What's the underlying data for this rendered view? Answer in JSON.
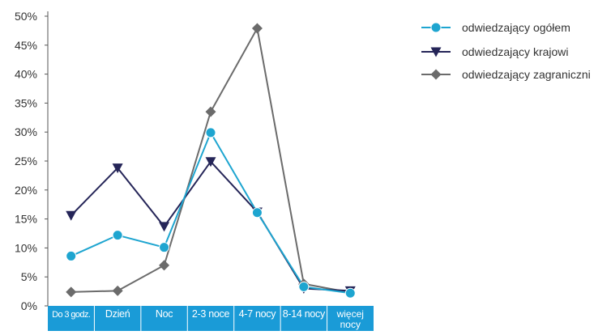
{
  "chart_data": {
    "type": "line",
    "title": "",
    "xlabel": "",
    "ylabel": "",
    "categories": [
      "Do 3 godz.",
      "Dzień",
      "Noc",
      "2-3 noce",
      "4-7 nocy",
      "8-14 nocy",
      "więcej nocy"
    ],
    "ylim": [
      0,
      50
    ],
    "yticks": [
      "0%",
      "5%",
      "10%",
      "15%",
      "20%",
      "25%",
      "30%",
      "35%",
      "40%",
      "45%",
      "50%"
    ],
    "grid": false,
    "legend_position": "top-right",
    "category_band_color": "#1a9bd7",
    "series": [
      {
        "name": "odwiedzający ogółem",
        "color": "#1ea5d0",
        "marker": "circle",
        "values": [
          8.6,
          12.2,
          10.1,
          29.9,
          16.1,
          3.3,
          2.2
        ]
      },
      {
        "name": "odwiedzający krajowi",
        "color": "#252558",
        "marker": "triangle-down",
        "values": [
          15.6,
          23.8,
          13.7,
          24.9,
          16.2,
          3.0,
          2.6
        ]
      },
      {
        "name": "odwiedzający zagraniczni",
        "color": "#6b6b6b",
        "marker": "diamond",
        "values": [
          2.4,
          2.6,
          7.0,
          33.5,
          47.9,
          3.8,
          2.3
        ]
      }
    ]
  }
}
